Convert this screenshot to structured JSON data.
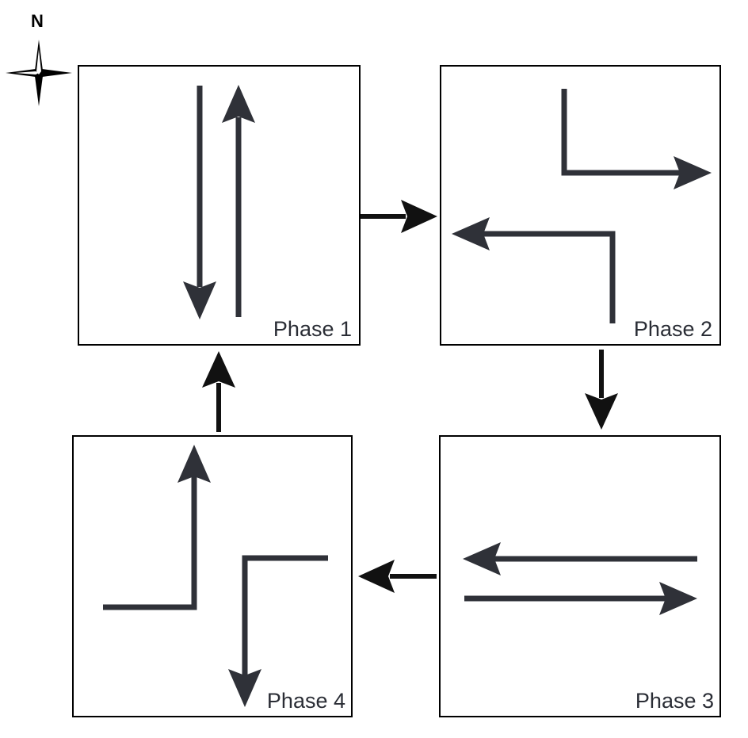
{
  "compass": {
    "label": "N",
    "icon": "north-compass-star-icon"
  },
  "phases": [
    {
      "label": "Phase 1",
      "movements": "northbound and southbound through"
    },
    {
      "label": "Phase 2",
      "movements": "southbound left turn and northbound left turn"
    },
    {
      "label": "Phase 3",
      "movements": "eastbound and westbound through"
    },
    {
      "label": "Phase 4",
      "movements": "eastbound left turn and westbound left turn"
    }
  ],
  "sequence": [
    "Phase 1",
    "Phase 2",
    "Phase 3",
    "Phase 4",
    "Phase 1"
  ],
  "colors": {
    "movement_arrow": "#2f3138",
    "sequence_arrow": "#111111",
    "panel_border": "#000000"
  }
}
